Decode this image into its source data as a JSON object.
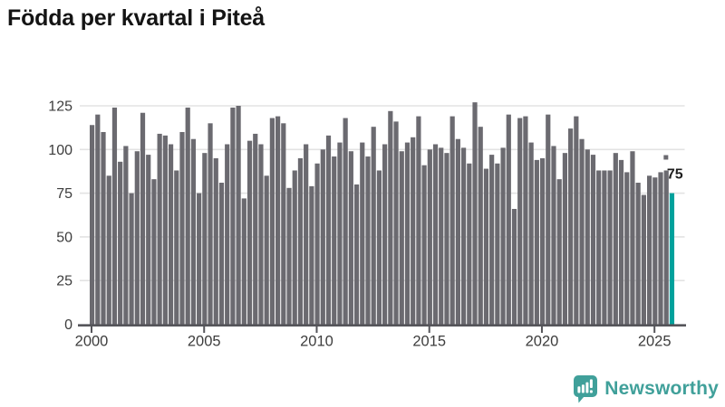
{
  "header": {
    "title": "Födda per kvartal i Piteå"
  },
  "footer": {
    "brand": "Newsworthy",
    "brand_color": "#40a09a",
    "logo_icon": "newsworthy-speech-bubble-bar-chart-icon"
  },
  "chart_data": {
    "type": "bar",
    "title": "Födda per kvartal i Piteå",
    "xlabel": "",
    "ylabel": "",
    "frequency": "quarterly",
    "x_start": "2000-Q1",
    "x_end": "2025-Q4",
    "y_ticks": [
      0,
      25,
      50,
      75,
      100,
      125
    ],
    "x_ticks": [
      2000,
      2005,
      2010,
      2015,
      2020,
      2025
    ],
    "ylim": [
      0,
      128
    ],
    "grid": true,
    "legend": "none",
    "bar_color": "#6b6a70",
    "highlight_color": "#00a19c",
    "highlight_last": true,
    "annotation": {
      "label": "75",
      "marker": "square-dot",
      "target": "last-bar"
    },
    "series": [
      {
        "year": 2000,
        "q": [
          114,
          120,
          110,
          85
        ]
      },
      {
        "year": 2001,
        "q": [
          124,
          93,
          102,
          75
        ]
      },
      {
        "year": 2002,
        "q": [
          99,
          121,
          97,
          83
        ]
      },
      {
        "year": 2003,
        "q": [
          109,
          108,
          103,
          88
        ]
      },
      {
        "year": 2004,
        "q": [
          110,
          124,
          106,
          75
        ]
      },
      {
        "year": 2005,
        "q": [
          98,
          115,
          95,
          81
        ]
      },
      {
        "year": 2006,
        "q": [
          103,
          124,
          125,
          72
        ]
      },
      {
        "year": 2007,
        "q": [
          105,
          109,
          103,
          85
        ]
      },
      {
        "year": 2008,
        "q": [
          118,
          119,
          115,
          78
        ]
      },
      {
        "year": 2009,
        "q": [
          88,
          95,
          103,
          79
        ]
      },
      {
        "year": 2010,
        "q": [
          92,
          100,
          108,
          96
        ]
      },
      {
        "year": 2011,
        "q": [
          104,
          118,
          99,
          80
        ]
      },
      {
        "year": 2012,
        "q": [
          104,
          96,
          113,
          88
        ]
      },
      {
        "year": 2013,
        "q": [
          103,
          122,
          116,
          99
        ]
      },
      {
        "year": 2014,
        "q": [
          104,
          107,
          119,
          91
        ]
      },
      {
        "year": 2015,
        "q": [
          100,
          103,
          101,
          98
        ]
      },
      {
        "year": 2016,
        "q": [
          119,
          106,
          101,
          92
        ]
      },
      {
        "year": 2017,
        "q": [
          127,
          113,
          89,
          97
        ]
      },
      {
        "year": 2018,
        "q": [
          92,
          101,
          120,
          66
        ]
      },
      {
        "year": 2019,
        "q": [
          118,
          119,
          104,
          94
        ]
      },
      {
        "year": 2020,
        "q": [
          95,
          120,
          102,
          83
        ]
      },
      {
        "year": 2021,
        "q": [
          98,
          112,
          119,
          106
        ]
      },
      {
        "year": 2022,
        "q": [
          100,
          97,
          88,
          88
        ]
      },
      {
        "year": 2023,
        "q": [
          88,
          98,
          94,
          87
        ]
      },
      {
        "year": 2024,
        "q": [
          99,
          81,
          74,
          85
        ]
      },
      {
        "year": 2025,
        "q": [
          84,
          87,
          88,
          75
        ]
      }
    ]
  }
}
